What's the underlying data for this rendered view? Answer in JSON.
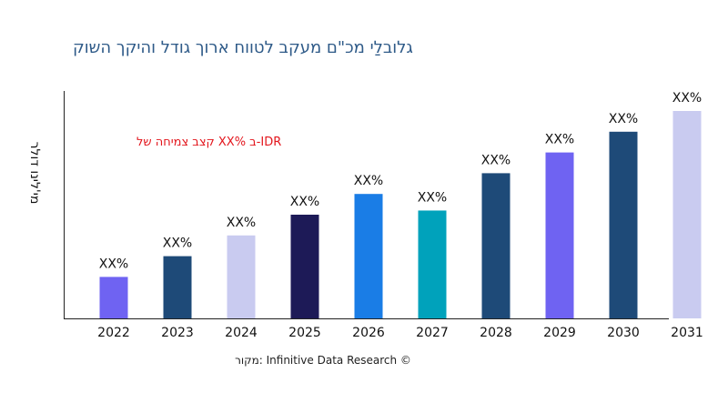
{
  "chart_data": {
    "type": "bar",
    "title": "קושה ךקיהו לדוג ךורא חווטל בקעמ ם\"כמ ילַבולג",
    "y_label": "רלוד וניל'ימ",
    "annotation": "לש החימצ בצק XX% ב-IDR",
    "source": "רוקמ: Infinitive Data Research ©",
    "categories": [
      "2022",
      "2023",
      "2024",
      "2025",
      "2026",
      "2027",
      "2028",
      "2029",
      "2030",
      "2031"
    ],
    "values": [
      20,
      30,
      40,
      50,
      60,
      52,
      70,
      80,
      90,
      100
    ],
    "value_labels": [
      "XX%",
      "XX%",
      "XX%",
      "XX%",
      "XX%",
      "XX%",
      "XX%",
      "XX%",
      "XX%",
      "XX%"
    ],
    "colors": [
      "#6f63f2",
      "#1e4a78",
      "#c9cbf0",
      "#1d1a57",
      "#1a7de6",
      "#00a2bb",
      "#1e4a78",
      "#6f63f2",
      "#1e4a78",
      "#c9cbf0"
    ]
  }
}
